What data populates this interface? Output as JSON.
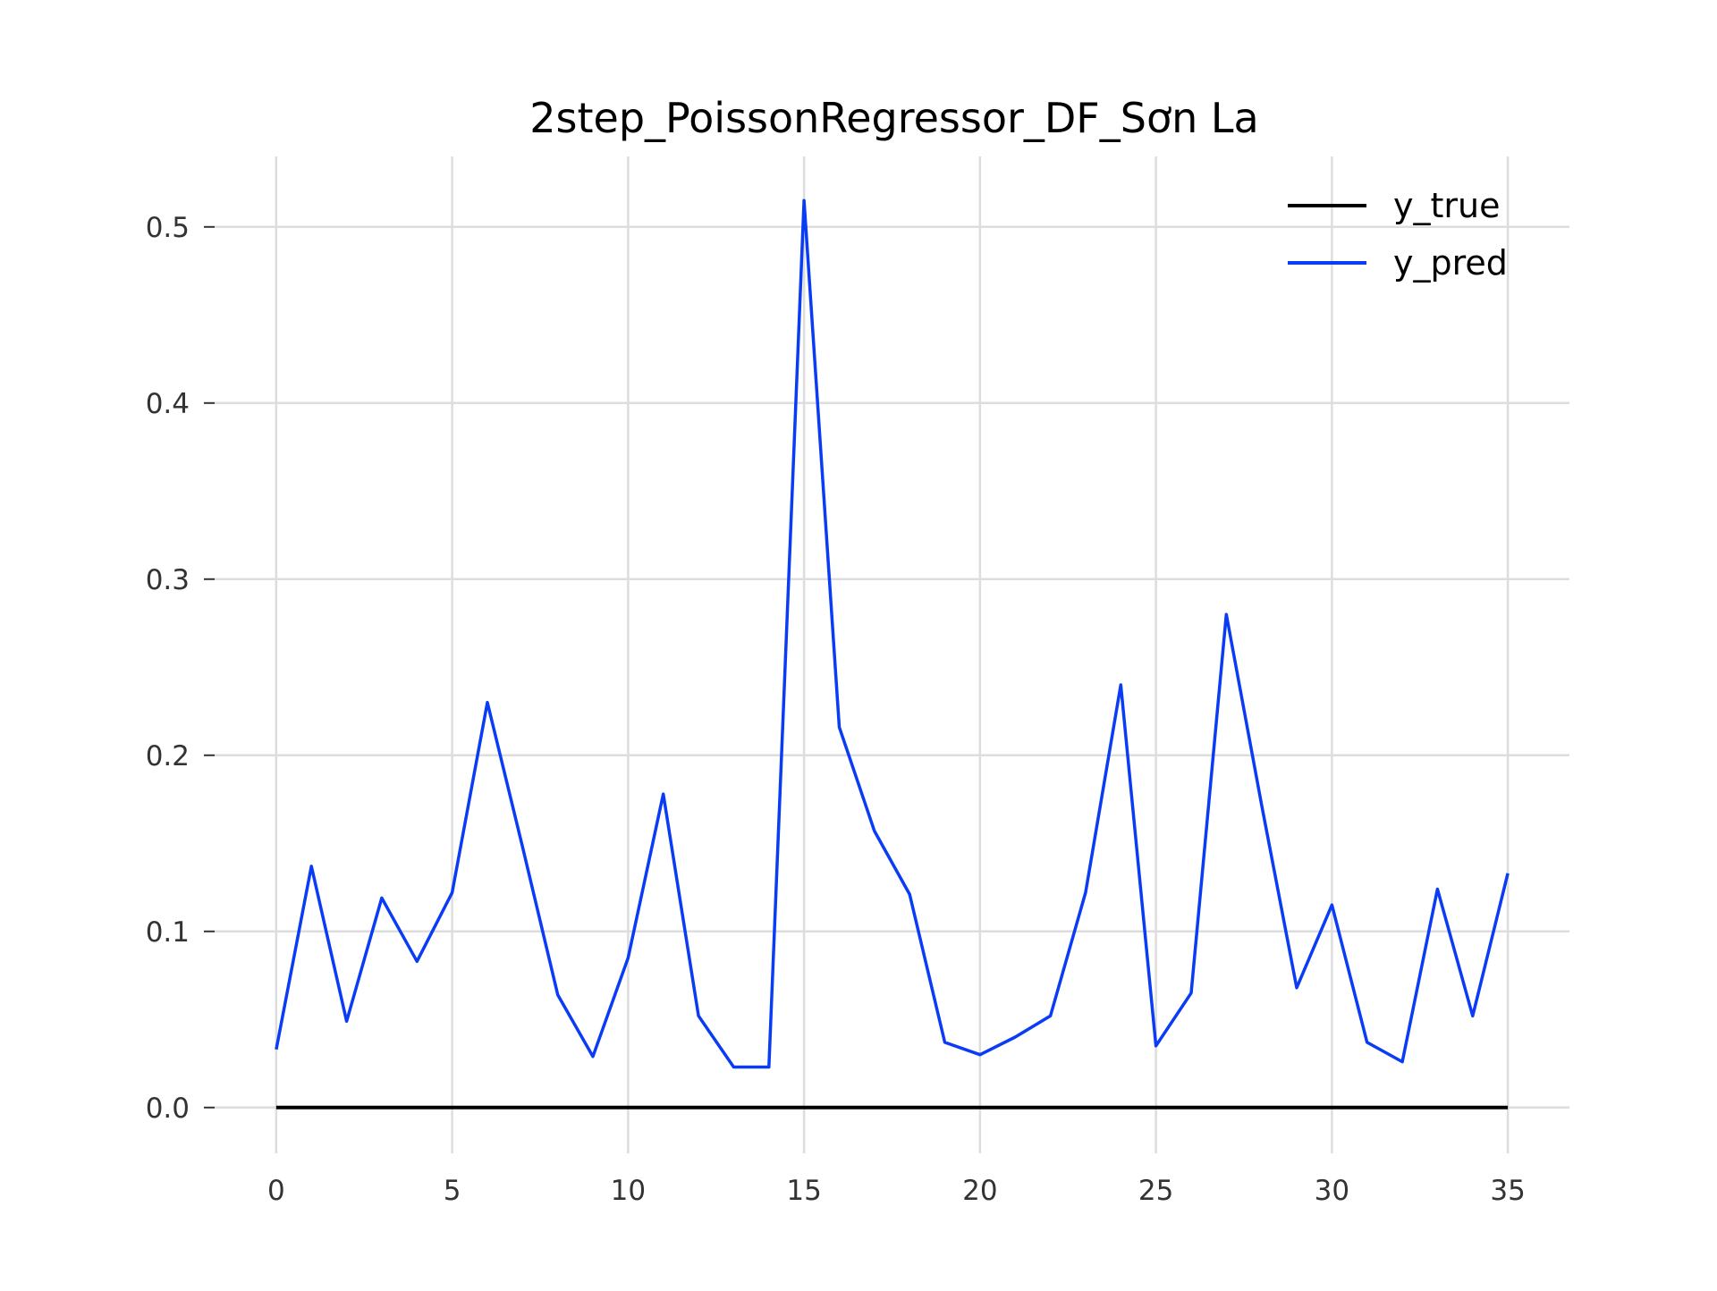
{
  "chart_data": {
    "type": "line",
    "title": "2step_PoissonRegressor_DF_Sơn La",
    "xlabel": "",
    "ylabel": "",
    "xlim": [
      -1.75,
      36.75
    ],
    "ylim": [
      -0.026,
      0.54
    ],
    "x_ticks": [
      0,
      5,
      10,
      15,
      20,
      25,
      30,
      35
    ],
    "x_tick_labels": [
      "0",
      "5",
      "10",
      "15",
      "20",
      "25",
      "30",
      "35"
    ],
    "y_ticks": [
      0.0,
      0.1,
      0.2,
      0.3,
      0.4,
      0.5
    ],
    "y_tick_labels": [
      "0.0",
      "0.1",
      "0.2",
      "0.3",
      "0.4",
      "0.5"
    ],
    "grid": true,
    "legend_position": "top-right",
    "x": [
      0,
      1,
      2,
      3,
      4,
      5,
      6,
      7,
      8,
      9,
      10,
      11,
      12,
      13,
      14,
      15,
      16,
      17,
      18,
      19,
      20,
      21,
      22,
      23,
      24,
      25,
      26,
      27,
      28,
      29,
      30,
      31,
      32,
      33,
      34,
      35
    ],
    "series": [
      {
        "name": "y_true",
        "color": "#000000",
        "values": [
          0,
          0,
          0,
          0,
          0,
          0,
          0,
          0,
          0,
          0,
          0,
          0,
          0,
          0,
          0,
          0,
          0,
          0,
          0,
          0,
          0,
          0,
          0,
          0,
          0,
          0,
          0,
          0,
          0,
          0,
          0,
          0,
          0,
          0,
          0,
          0
        ]
      },
      {
        "name": "y_pred",
        "color": "#0a3cf5",
        "values": [
          0.033,
          0.137,
          0.049,
          0.119,
          0.083,
          0.122,
          0.23,
          0.148,
          0.064,
          0.029,
          0.085,
          0.178,
          0.052,
          0.023,
          0.023,
          0.515,
          0.216,
          0.157,
          0.121,
          0.037,
          0.03,
          0.04,
          0.052,
          0.122,
          0.24,
          0.035,
          0.065,
          0.28,
          0.172,
          0.068,
          0.115,
          0.037,
          0.026,
          0.124,
          0.052,
          0.133
        ]
      }
    ]
  }
}
